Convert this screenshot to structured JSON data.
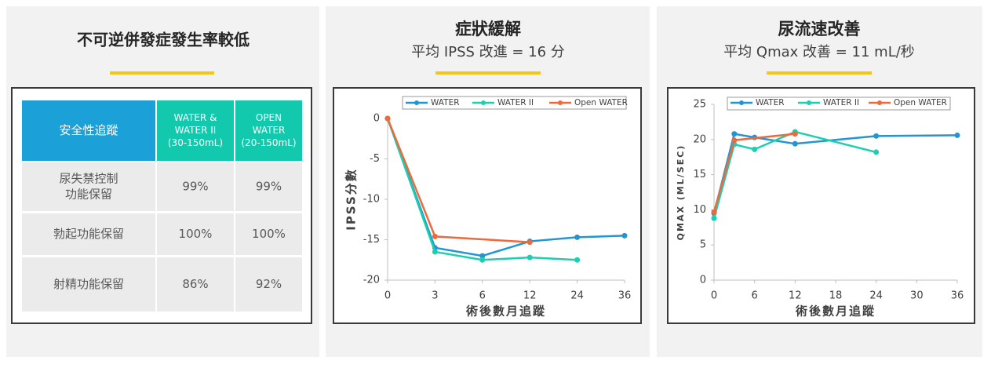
{
  "table_panel": {
    "title": "不可逆併發症發生率較低",
    "table": {
      "header": [
        [
          "安全性追蹤"
        ],
        [
          "WATER &",
          "WATER II",
          "(30-150mL)"
        ],
        [
          "OPEN",
          "WATER",
          "(20-150mL)"
        ]
      ],
      "rows": [
        [
          [
            "尿失禁控制",
            "功能保留"
          ],
          [
            "99%"
          ],
          [
            "99%"
          ]
        ],
        [
          [
            "勃起功能保留"
          ],
          [
            "100%"
          ],
          [
            "100%"
          ]
        ],
        [
          [
            "射精功能保留"
          ],
          [
            "86%"
          ],
          [
            "92%"
          ]
        ]
      ]
    }
  },
  "chart_data": [
    {
      "type": "line",
      "title": "症狀緩解",
      "subtitle": "平均 IPSS 改進 = 16 分",
      "x_label": "術後數月追蹤",
      "y_label": "IPSS分數",
      "categories": [
        "0",
        "3",
        "6",
        "12",
        "24",
        "36"
      ],
      "ylim": [
        -20,
        0
      ],
      "yticks": [
        -20,
        -15,
        -10,
        -5,
        0
      ],
      "legend": "top",
      "series": [
        {
          "name": "WATER",
          "color": "#2196d3",
          "x": [
            "0",
            "3",
            "6",
            "12",
            "24",
            "36"
          ],
          "values": [
            0,
            -16.0,
            -17.0,
            -15.2,
            -14.7,
            -14.5
          ]
        },
        {
          "name": "WATER II",
          "color": "#1ccfb0",
          "x": [
            "0",
            "3",
            "6",
            "12",
            "24"
          ],
          "values": [
            0,
            -16.5,
            -17.5,
            -17.2,
            -17.5
          ]
        },
        {
          "name": "Open WATER",
          "color": "#ec6a3c",
          "x": [
            "0",
            "3",
            "12"
          ],
          "values": [
            0,
            -14.6,
            -15.3
          ]
        }
      ]
    },
    {
      "type": "line",
      "title": "尿流速改善",
      "subtitle": "平均 Qmax 改善 = 11 mL/秒",
      "x_label": "術後數月追蹤",
      "y_label": "QMAX (ML/SEC)",
      "xlim": [
        0,
        36
      ],
      "xticks": [
        0,
        6,
        12,
        18,
        24,
        30,
        36
      ],
      "ylim": [
        0,
        25
      ],
      "yticks": [
        0,
        5,
        10,
        15,
        20,
        25
      ],
      "legend": "top",
      "series": [
        {
          "name": "WATER",
          "color": "#2196d3",
          "x": [
            0,
            3,
            6,
            12,
            24,
            36
          ],
          "values": [
            9.5,
            20.8,
            20.3,
            19.4,
            20.5,
            20.6
          ]
        },
        {
          "name": "WATER II",
          "color": "#1ccfb0",
          "x": [
            0,
            3,
            6,
            12,
            24
          ],
          "values": [
            8.8,
            19.3,
            18.6,
            21.1,
            18.2
          ]
        },
        {
          "name": "Open WATER",
          "color": "#ec6a3c",
          "x": [
            0,
            3,
            12
          ],
          "values": [
            9.7,
            19.9,
            20.8
          ]
        }
      ]
    }
  ]
}
